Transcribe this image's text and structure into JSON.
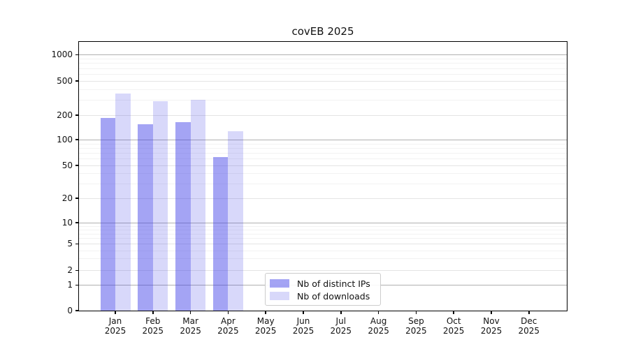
{
  "title": "covEB 2025",
  "legend": {
    "items": [
      {
        "label": "Nb of distinct IPs",
        "color": "#a6a6f2",
        "fill": "rgba(62,62,232,0.47)"
      },
      {
        "label": "Nb of downloads",
        "color": "#d9d9f8",
        "fill": "rgba(62,62,232,0.20)"
      }
    ]
  },
  "colors": {
    "bar_dark": "rgba(62,62,232,0.47)",
    "bar_light": "rgba(62,62,232,0.20)",
    "grid_decade": "#b0b0b0",
    "grid_tick": "#e4e4e4",
    "grid_minor": "#f2f2f2",
    "spine": "#000000",
    "text": "#111111"
  },
  "chart_data": {
    "type": "bar",
    "title": "covEB 2025",
    "categories": [
      "Jan 2025",
      "Feb 2025",
      "Mar 2025",
      "Apr 2025",
      "May 2025",
      "Jun 2025",
      "Jul 2025",
      "Aug 2025",
      "Sep 2025",
      "Oct 2025",
      "Nov 2025",
      "Dec 2025"
    ],
    "series": [
      {
        "name": "Nb of distinct IPs",
        "values": [
          183,
          155,
          165,
          63,
          null,
          null,
          null,
          null,
          null,
          null,
          null,
          null
        ]
      },
      {
        "name": "Nb of downloads",
        "values": [
          360,
          290,
          300,
          128,
          null,
          null,
          null,
          null,
          null,
          null,
          null,
          null
        ]
      }
    ],
    "xlabel": "",
    "ylabel": "",
    "yscale": "symlog",
    "yticks": [
      0,
      1,
      2,
      5,
      10,
      20,
      50,
      100,
      200,
      500,
      1000
    ],
    "ylim": [
      0,
      1400
    ],
    "grid": true,
    "legend_position": "lower center"
  }
}
